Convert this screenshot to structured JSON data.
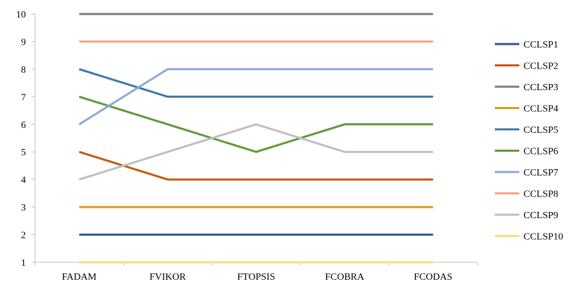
{
  "chart_data": {
    "type": "line",
    "title": "",
    "xlabel": "",
    "ylabel": "",
    "categories": [
      "FADAM",
      "FVIKOR",
      "FTOPSIS",
      "FCOBRA",
      "FCODAS"
    ],
    "ylim": [
      1,
      10
    ],
    "yticks": [
      1,
      2,
      3,
      4,
      5,
      6,
      7,
      8,
      9,
      10
    ],
    "grid": false,
    "legend_position": "right",
    "series": [
      {
        "name": "CCLSP1",
        "color": "#2E5597",
        "values": [
          2,
          2,
          2,
          2,
          2
        ]
      },
      {
        "name": "CCLSP2",
        "color": "#C55A11",
        "values": [
          5,
          4,
          4,
          4,
          4
        ]
      },
      {
        "name": "CCLSP3",
        "color": "#7F7F7F",
        "values": [
          10,
          10,
          10,
          10,
          10
        ]
      },
      {
        "name": "CCLSP4",
        "color": "#D4A017",
        "values": [
          3,
          3,
          3,
          3,
          3
        ]
      },
      {
        "name": "CCLSP5",
        "color": "#3C78A8",
        "values": [
          8,
          7,
          7,
          7,
          7
        ]
      },
      {
        "name": "CCLSP6",
        "color": "#5E9A3A",
        "values": [
          7,
          6,
          5,
          6,
          6
        ]
      },
      {
        "name": "CCLSP7",
        "color": "#8FA8D8",
        "values": [
          6,
          8,
          8,
          8,
          8
        ]
      },
      {
        "name": "CCLSP8",
        "color": "#F4A582",
        "values": [
          9,
          9,
          9,
          9,
          9
        ]
      },
      {
        "name": "CCLSP9",
        "color": "#BFBFBF",
        "values": [
          4,
          5,
          6,
          5,
          5
        ]
      },
      {
        "name": "CCLSP10",
        "color": "#FFD97A",
        "values": [
          1,
          1,
          1,
          1,
          1
        ]
      }
    ]
  }
}
